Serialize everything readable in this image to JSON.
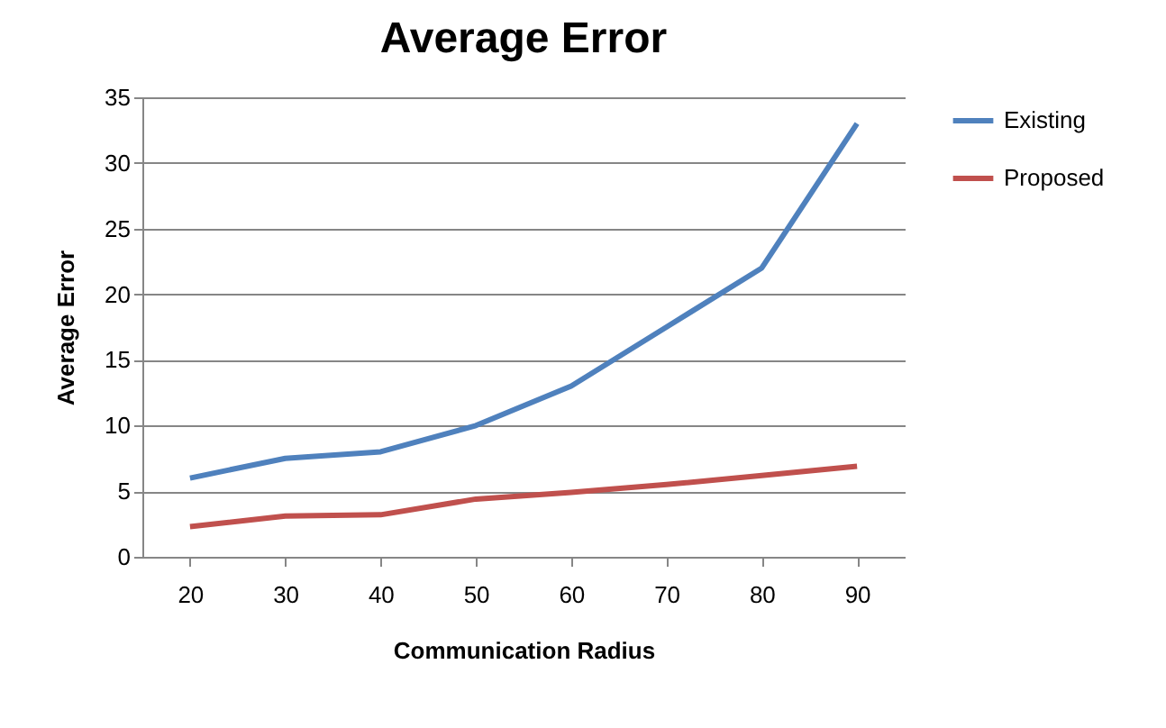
{
  "chart_data": {
    "type": "line",
    "title": "Average Error",
    "xlabel": "Communication Radius",
    "ylabel": "Average Error",
    "categories": [
      "20",
      "30",
      "40",
      "50",
      "60",
      "70",
      "80",
      "90"
    ],
    "series": [
      {
        "name": "Existing",
        "color": "#4f81bd",
        "values": [
          6,
          7.5,
          8,
          10,
          13,
          17.5,
          22,
          33
        ]
      },
      {
        "name": "Proposed",
        "color": "#c0504d",
        "values": [
          2.3,
          3.1,
          3.2,
          4.4,
          4.9,
          5.5,
          6.2,
          6.9
        ]
      }
    ],
    "ylim": [
      0,
      35
    ],
    "yticks": [
      0,
      5,
      10,
      15,
      20,
      25,
      30,
      35
    ],
    "grid": "y",
    "legend": "right",
    "marker": "none",
    "line_style": "solid"
  }
}
